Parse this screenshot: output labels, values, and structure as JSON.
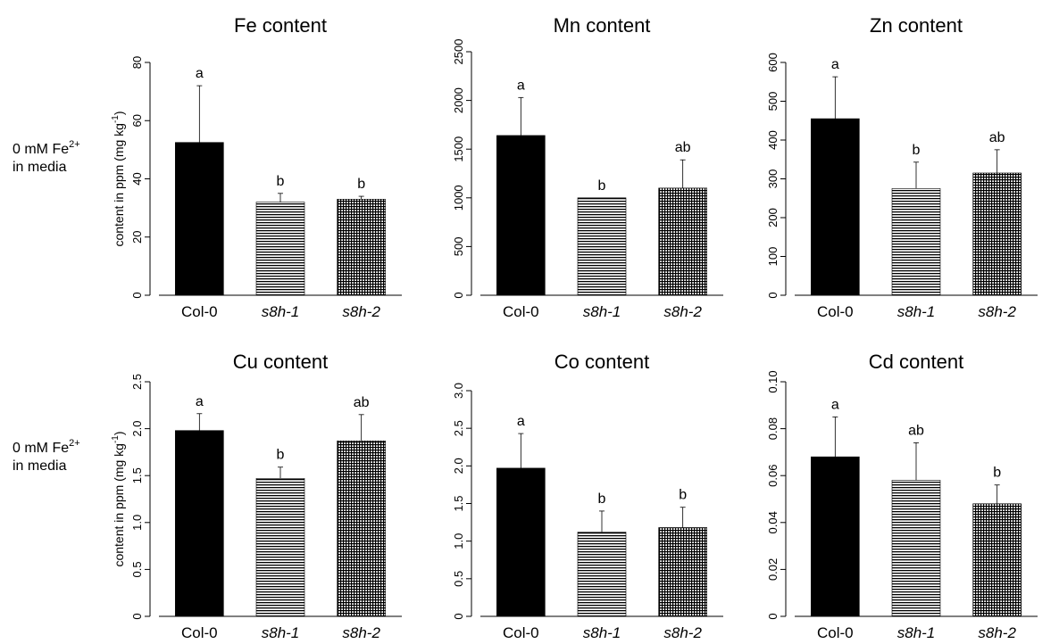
{
  "row_labels": [
    {
      "text": "0 mM Fe",
      "sup": "2+",
      "line2": "in media"
    },
    {
      "text": "0 mM Fe",
      "sup": "2+",
      "line2": "in media"
    }
  ],
  "chart_data": [
    {
      "type": "bar",
      "title": "Fe content",
      "categories": [
        "Col-0",
        "s8h-1",
        "s8h-2"
      ],
      "values": [
        52.5,
        32,
        33
      ],
      "errors": [
        19.5,
        3,
        1
      ],
      "letters": [
        "a",
        "b",
        "b"
      ],
      "ylim": [
        0,
        80
      ],
      "yticks": [
        0,
        20,
        40,
        60,
        80
      ],
      "yticklabels": [
        "0",
        "20",
        "40",
        "60",
        "80"
      ],
      "ylabel": "content in ppm (mg kg",
      "ylabel_sup": "-1",
      "ylabel_end": ")"
    },
    {
      "type": "bar",
      "title": "Mn content",
      "categories": [
        "Col-0",
        "s8h-1",
        "s8h-2"
      ],
      "values": [
        1640,
        1000,
        1100
      ],
      "errors": [
        390,
        0,
        290
      ],
      "letters": [
        "a",
        "b",
        "ab"
      ],
      "ylim": [
        0,
        2500
      ],
      "yticks": [
        0,
        500,
        1000,
        1500,
        2000,
        2500
      ],
      "yticklabels": [
        "0",
        "500",
        "1000",
        "1500",
        "2000",
        "2500"
      ],
      "ylabel": "",
      "ylabel_sup": "",
      "ylabel_end": ""
    },
    {
      "type": "bar",
      "title": "Zn content",
      "categories": [
        "Col-0",
        "s8h-1",
        "s8h-2"
      ],
      "values": [
        455,
        275,
        315
      ],
      "errors": [
        108,
        68,
        60
      ],
      "letters": [
        "a",
        "b",
        "ab"
      ],
      "ylim": [
        0,
        600
      ],
      "yticks": [
        0,
        100,
        200,
        300,
        400,
        500,
        600
      ],
      "yticklabels": [
        "0",
        "100",
        "200",
        "300",
        "400",
        "500",
        "600"
      ],
      "ylabel": "",
      "ylabel_sup": "",
      "ylabel_end": ""
    },
    {
      "type": "bar",
      "title": "Cu content",
      "categories": [
        "Col-0",
        "s8h-1",
        "s8h-2"
      ],
      "values": [
        1.98,
        1.47,
        1.87
      ],
      "errors": [
        0.18,
        0.12,
        0.28
      ],
      "letters": [
        "a",
        "b",
        "ab"
      ],
      "ylim": [
        0,
        2.5
      ],
      "yticks": [
        0,
        0.5,
        1.0,
        1.5,
        2.0,
        2.5
      ],
      "yticklabels": [
        "0",
        "0.5",
        "1.0",
        "1.5",
        "2.0",
        "2.5"
      ],
      "ylabel": "content in ppm (mg kg",
      "ylabel_sup": "-1",
      "ylabel_end": ")"
    },
    {
      "type": "bar",
      "title": "Co content",
      "categories": [
        "Col-0",
        "s8h-1",
        "s8h-2"
      ],
      "values": [
        1.97,
        1.12,
        1.18
      ],
      "errors": [
        0.46,
        0.28,
        0.27
      ],
      "letters": [
        "a",
        "b",
        "b"
      ],
      "ylim": [
        0,
        3.0
      ],
      "yticks": [
        0,
        0.5,
        1.0,
        1.5,
        2.0,
        2.5,
        3.0
      ],
      "yticklabels": [
        "0",
        "0.5",
        "1.0",
        "1.5",
        "2.0",
        "2.5",
        "3.0"
      ],
      "ylabel": "",
      "ylabel_sup": "",
      "ylabel_end": ""
    },
    {
      "type": "bar",
      "title": "Cd content",
      "categories": [
        "Col-0",
        "s8h-1",
        "s8h-2"
      ],
      "values": [
        0.068,
        0.058,
        0.048
      ],
      "errors": [
        0.017,
        0.016,
        0.008
      ],
      "letters": [
        "a",
        "ab",
        "b"
      ],
      "ylim": [
        0,
        0.1
      ],
      "yticks": [
        0,
        0.02,
        0.04,
        0.06,
        0.08,
        0.1
      ],
      "yticklabels": [
        "0",
        "0.02",
        "0.04",
        "0.06",
        "0.08",
        "0.10"
      ],
      "ylabel": "",
      "ylabel_sup": "",
      "ylabel_end": ""
    }
  ]
}
